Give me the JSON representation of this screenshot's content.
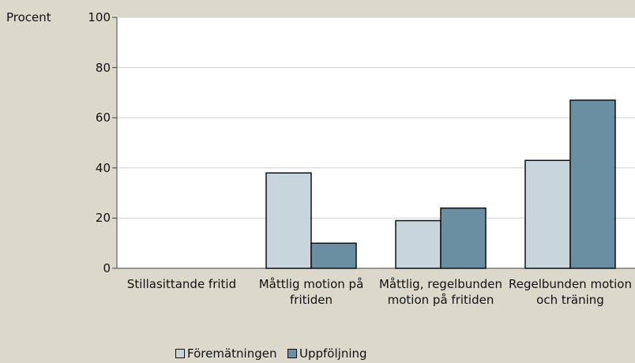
{
  "chart_data": {
    "type": "bar",
    "y_label": "Procent",
    "categories": [
      "Stillasittande fritid",
      "Måttlig motion på fritiden",
      "Måttlig, regelbunden motion på fritiden",
      "Regelbunden motion och träning"
    ],
    "series": [
      {
        "name": "Föremätningen",
        "color": "#c9d5dc",
        "values": [
          0,
          38,
          19,
          43
        ]
      },
      {
        "name": "Uppföljning",
        "color": "#6b8fa2",
        "values": [
          0,
          10,
          24,
          67
        ]
      }
    ],
    "ylim": [
      0,
      100
    ],
    "yticks": [
      0,
      20,
      40,
      60,
      80,
      100
    ],
    "grid": true
  }
}
